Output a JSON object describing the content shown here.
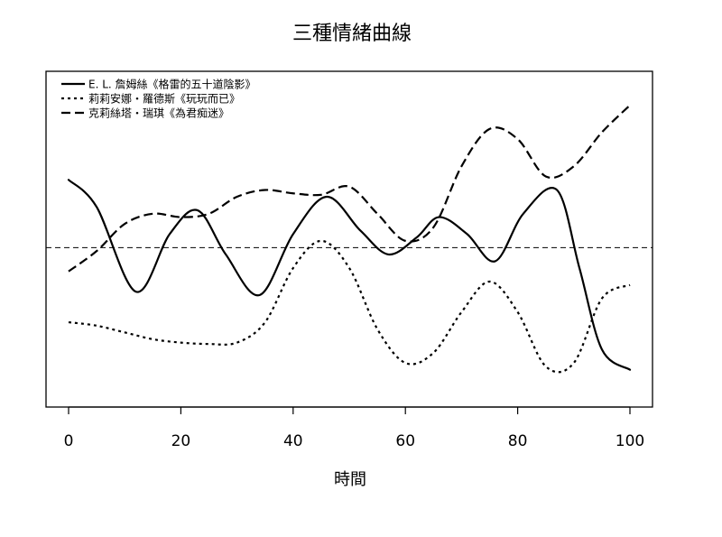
{
  "chart_data": {
    "type": "line",
    "title": "三種情緒曲線",
    "xlabel": "時間",
    "ylabel": "",
    "xlim": [
      0,
      100
    ],
    "xticks": [
      0,
      20,
      40,
      60,
      80,
      100
    ],
    "grid": false,
    "legend_position": "top-left",
    "reference_line": {
      "y": 0,
      "style": "dashed"
    },
    "series": [
      {
        "name": "E. L. 詹姆絲《格雷的五十道陰影》",
        "style": "solid",
        "color": "#000000",
        "x": [
          0,
          5,
          12,
          18,
          23,
          28,
          34,
          40,
          46,
          52,
          57,
          62,
          66,
          71,
          76,
          81,
          87,
          91,
          95,
          100
        ],
        "y": [
          1.0,
          0.6,
          -0.65,
          0.2,
          0.55,
          -0.1,
          -0.7,
          0.2,
          0.75,
          0.25,
          -0.1,
          0.15,
          0.45,
          0.2,
          -0.2,
          0.5,
          0.85,
          -0.3,
          -1.5,
          -1.8
        ]
      },
      {
        "name": "莉莉安娜・羅德斯《玩玩而已》",
        "style": "dotted",
        "color": "#000000",
        "x": [
          0,
          5,
          10,
          15,
          20,
          25,
          30,
          35,
          40,
          45,
          50,
          55,
          60,
          65,
          70,
          75,
          80,
          85,
          90,
          95,
          100
        ],
        "y": [
          -1.1,
          -1.15,
          -1.25,
          -1.35,
          -1.4,
          -1.42,
          -1.4,
          -1.1,
          -0.3,
          0.1,
          -0.3,
          -1.2,
          -1.7,
          -1.55,
          -0.95,
          -0.5,
          -0.95,
          -1.75,
          -1.7,
          -0.75,
          -0.55
        ]
      },
      {
        "name": "克莉絲塔・瑞琪《為君痴迷》",
        "style": "dashed",
        "color": "#000000",
        "x": [
          0,
          5,
          10,
          15,
          20,
          25,
          30,
          35,
          40,
          45,
          50,
          55,
          60,
          65,
          70,
          75,
          80,
          85,
          90,
          95,
          100
        ],
        "y": [
          -0.35,
          -0.05,
          0.35,
          0.5,
          0.45,
          0.5,
          0.75,
          0.85,
          0.8,
          0.78,
          0.9,
          0.5,
          0.1,
          0.3,
          1.2,
          1.75,
          1.6,
          1.05,
          1.2,
          1.7,
          2.1
        ]
      }
    ]
  }
}
